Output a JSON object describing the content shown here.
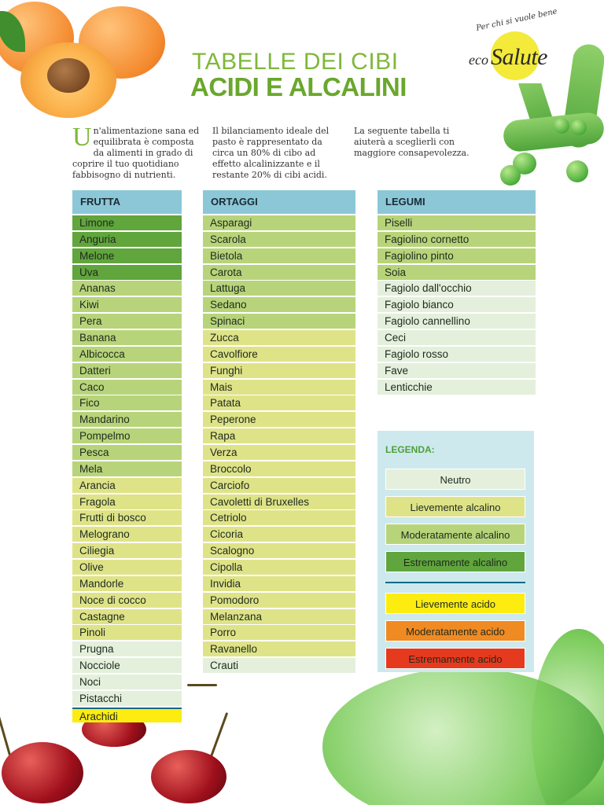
{
  "logo": {
    "tagline": "Per chi si vuole bene",
    "brand_eco": "eco",
    "brand_salute": "Salute"
  },
  "title": {
    "line1": "TABELLE DEI CIBI",
    "line2": "ACIDI E ALCALINI"
  },
  "intro": {
    "p1_dropcap": "U",
    "p1_rest": "n'alimentazione sana ed equilibrata è composta da alimenti in grado di coprire il tuo quotidiano fabbisogno di nutrienti.",
    "p2": "Il bilanciamento ideale del pasto è rappresentato da circa un 80% di cibo ad effetto alcalinizzante e il restante 20% di cibi acidi.",
    "p3": "La seguente tabella ti aiuterà a sceglierli con maggiore consapevolezza."
  },
  "colors": {
    "neutro": "#e4f0dc",
    "lievemente_alcalino": "#dfe388",
    "moderatamente_alcalino": "#b8d47a",
    "estremamente_alcalino": "#61a53d",
    "lievemente_acido": "#fcec10",
    "moderatamente_acido": "#f08a22",
    "estremamente_acido": "#e63a1e",
    "header": "#8cc7d8"
  },
  "tables": {
    "frutta": {
      "header": "FRUTTA",
      "items": [
        {
          "name": "Limone",
          "cat": "estr-alc"
        },
        {
          "name": "Anguria",
          "cat": "estr-alc"
        },
        {
          "name": "Melone",
          "cat": "estr-alc"
        },
        {
          "name": "Uva",
          "cat": "estr-alc"
        },
        {
          "name": "Ananas",
          "cat": "mod-alc"
        },
        {
          "name": "Kiwi",
          "cat": "mod-alc"
        },
        {
          "name": "Pera",
          "cat": "mod-alc"
        },
        {
          "name": "Banana",
          "cat": "mod-alc"
        },
        {
          "name": "Albicocca",
          "cat": "mod-alc"
        },
        {
          "name": "Datteri",
          "cat": "mod-alc"
        },
        {
          "name": "Caco",
          "cat": "mod-alc"
        },
        {
          "name": "Fico",
          "cat": "mod-alc"
        },
        {
          "name": "Mandarino",
          "cat": "mod-alc"
        },
        {
          "name": "Pompelmo",
          "cat": "mod-alc"
        },
        {
          "name": "Pesca",
          "cat": "mod-alc"
        },
        {
          "name": "Mela",
          "cat": "mod-alc"
        },
        {
          "name": "Arancia",
          "cat": "liev-alc"
        },
        {
          "name": "Fragola",
          "cat": "liev-alc"
        },
        {
          "name": "Frutti di bosco",
          "cat": "liev-alc"
        },
        {
          "name": "Melograno",
          "cat": "liev-alc"
        },
        {
          "name": "Ciliegia",
          "cat": "liev-alc"
        },
        {
          "name": "Olive",
          "cat": "liev-alc"
        },
        {
          "name": "Mandorle",
          "cat": "liev-alc"
        },
        {
          "name": "Noce di cocco",
          "cat": "liev-alc"
        },
        {
          "name": "Castagne",
          "cat": "liev-alc"
        },
        {
          "name": "Pinoli",
          "cat": "liev-alc"
        },
        {
          "name": "Prugna",
          "cat": "neutro"
        },
        {
          "name": "Nocciole",
          "cat": "neutro"
        },
        {
          "name": "Noci",
          "cat": "neutro"
        },
        {
          "name": "Pistacchi",
          "cat": "neutro"
        },
        {
          "name": "Arachidi",
          "cat": "liev-acid"
        }
      ]
    },
    "ortaggi": {
      "header": "ORTAGGI",
      "items": [
        {
          "name": "Asparagi",
          "cat": "mod-alc"
        },
        {
          "name": "Scarola",
          "cat": "mod-alc"
        },
        {
          "name": "Bietola",
          "cat": "mod-alc"
        },
        {
          "name": "Carota",
          "cat": "mod-alc"
        },
        {
          "name": "Lattuga",
          "cat": "mod-alc"
        },
        {
          "name": "Sedano",
          "cat": "mod-alc"
        },
        {
          "name": "Spinaci",
          "cat": "mod-alc"
        },
        {
          "name": "Zucca",
          "cat": "liev-alc"
        },
        {
          "name": "Cavolfiore",
          "cat": "liev-alc"
        },
        {
          "name": "Funghi",
          "cat": "liev-alc"
        },
        {
          "name": "Mais",
          "cat": "liev-alc"
        },
        {
          "name": "Patata",
          "cat": "liev-alc"
        },
        {
          "name": "Peperone",
          "cat": "liev-alc"
        },
        {
          "name": "Rapa",
          "cat": "liev-alc"
        },
        {
          "name": "Verza",
          "cat": "liev-alc"
        },
        {
          "name": "Broccolo",
          "cat": "liev-alc"
        },
        {
          "name": "Carciofo",
          "cat": "liev-alc"
        },
        {
          "name": "Cavoletti di Bruxelles",
          "cat": "liev-alc"
        },
        {
          "name": "Cetriolo",
          "cat": "liev-alc"
        },
        {
          "name": "Cicoria",
          "cat": "liev-alc"
        },
        {
          "name": "Scalogno",
          "cat": "liev-alc"
        },
        {
          "name": "Cipolla",
          "cat": "liev-alc"
        },
        {
          "name": "Invidia",
          "cat": "liev-alc"
        },
        {
          "name": "Pomodoro",
          "cat": "liev-alc"
        },
        {
          "name": "Melanzana",
          "cat": "liev-alc"
        },
        {
          "name": "Porro",
          "cat": "liev-alc"
        },
        {
          "name": "Ravanello",
          "cat": "liev-alc"
        },
        {
          "name": "Crauti",
          "cat": "neutro"
        }
      ]
    },
    "legumi": {
      "header": "LEGUMI",
      "items": [
        {
          "name": "Piselli",
          "cat": "mod-alc"
        },
        {
          "name": "Fagiolino cornetto",
          "cat": "mod-alc"
        },
        {
          "name": "Fagiolino pinto",
          "cat": "mod-alc"
        },
        {
          "name": "Soia",
          "cat": "mod-alc"
        },
        {
          "name": "Fagiolo dall'occhio",
          "cat": "neutro"
        },
        {
          "name": "Fagiolo bianco",
          "cat": "neutro"
        },
        {
          "name": "Fagiolo cannellino",
          "cat": "neutro"
        },
        {
          "name": "Ceci",
          "cat": "neutro"
        },
        {
          "name": "Fagiolo rosso",
          "cat": "neutro"
        },
        {
          "name": "Fave",
          "cat": "neutro"
        },
        {
          "name": "Lenticchie",
          "cat": "neutro"
        }
      ]
    }
  },
  "legend": {
    "title": "LEGENDA:",
    "items": [
      {
        "label": "Neutro",
        "cat": "neutro"
      },
      {
        "label": "Lievemente alcalino",
        "cat": "liev-alc"
      },
      {
        "label": "Moderatamente alcalino",
        "cat": "mod-alc"
      },
      {
        "label": "Estremamente alcalino",
        "cat": "estr-alc"
      },
      {
        "label": "Lievemente acido",
        "cat": "liev-acid"
      },
      {
        "label": "Moderatamente acido",
        "cat": "mod-acid"
      },
      {
        "label": "Estremamente acido",
        "cat": "estr-acid"
      }
    ]
  }
}
